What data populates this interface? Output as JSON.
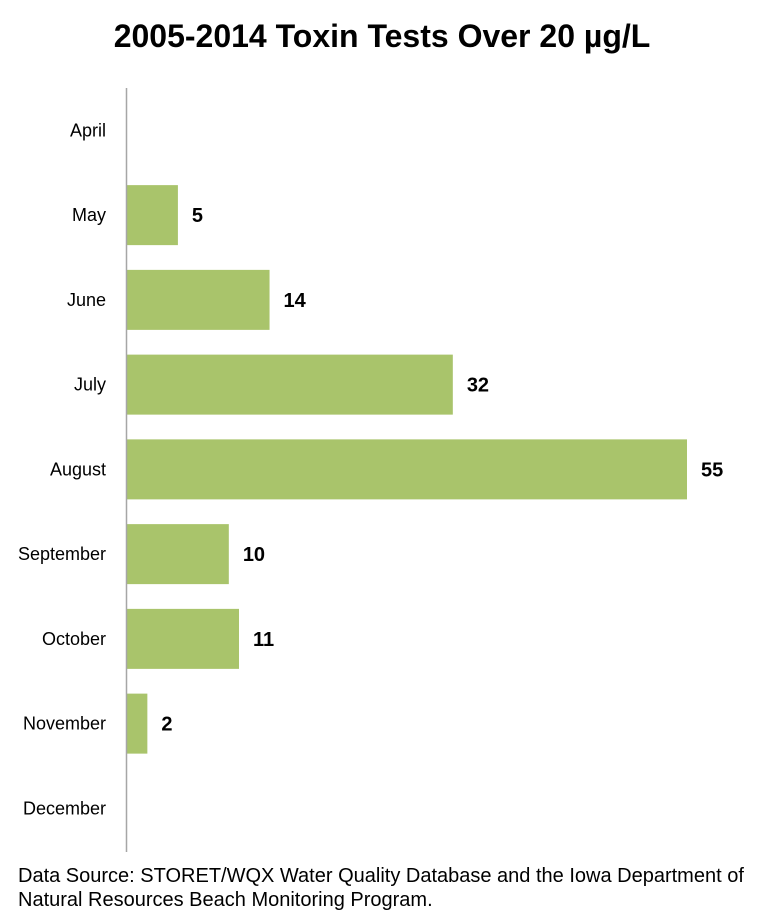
{
  "chart_data": {
    "type": "bar",
    "orientation": "horizontal",
    "title": "2005-2014 Toxin Tests Over 20 µg/L",
    "categories": [
      "April",
      "May",
      "June",
      "July",
      "August",
      "September",
      "October",
      "November",
      "December"
    ],
    "values": [
      null,
      5,
      14,
      32,
      55,
      10,
      11,
      2,
      null
    ],
    "value_labels": [
      "",
      "5",
      "14",
      "32",
      "55",
      "10",
      "11",
      "2",
      ""
    ],
    "xlabel": "",
    "ylabel": "",
    "xlim": [
      0,
      55
    ],
    "grid": false,
    "legend": "none",
    "bar_color": "#a9c46b",
    "axis_color": "#a6a6a6"
  },
  "source_note": "Data Source: STORET/WQX Water Quality Database and the Iowa Department of Natural Resources Beach Monitoring Program."
}
